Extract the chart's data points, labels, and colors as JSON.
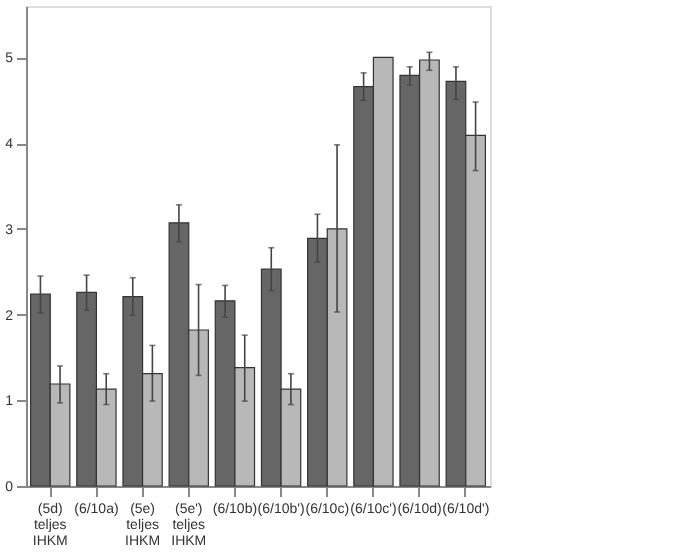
{
  "chart_data": {
    "type": "bar",
    "categories": [
      "(5d) teljes IHKM",
      "(6/10a)",
      "(5e) teljes IHKM",
      "(5e') teljes IHKM",
      "(6/10b)",
      "(6/10b')",
      "(6/10c)",
      "(6/10c')",
      "(6/10d)",
      "(6/10d')"
    ],
    "series": [
      {
        "color": "#666666",
        "values": [
          2.24,
          2.26,
          2.21,
          3.07,
          2.16,
          2.53,
          2.89,
          4.66,
          4.79,
          4.72
        ],
        "errors": [
          [
            2.02,
            2.45
          ],
          [
            2.05,
            2.46
          ],
          [
            1.99,
            2.43
          ],
          [
            2.85,
            3.28
          ],
          [
            1.97,
            2.34
          ],
          [
            2.28,
            2.78
          ],
          [
            2.61,
            3.17
          ],
          [
            4.5,
            4.82
          ],
          [
            4.68,
            4.89
          ],
          [
            4.51,
            4.89
          ]
        ]
      },
      {
        "color": "#b8b8b8",
        "values": [
          1.19,
          1.13,
          1.31,
          1.82,
          1.38,
          1.13,
          3.0,
          5.0,
          4.97,
          4.09
        ],
        "errors": [
          [
            0.97,
            1.4
          ],
          [
            0.95,
            1.31
          ],
          [
            0.99,
            1.64
          ],
          [
            1.29,
            2.35
          ],
          [
            0.99,
            1.76
          ],
          [
            0.95,
            1.31
          ],
          [
            2.03,
            3.98
          ],
          null,
          [
            4.85,
            5.06
          ],
          [
            3.68,
            4.48
          ]
        ]
      }
    ],
    "ylim": [
      0,
      5.6
    ],
    "yticks": [
      0,
      1,
      2,
      3,
      4,
      5
    ],
    "grid": false,
    "legend": false
  }
}
